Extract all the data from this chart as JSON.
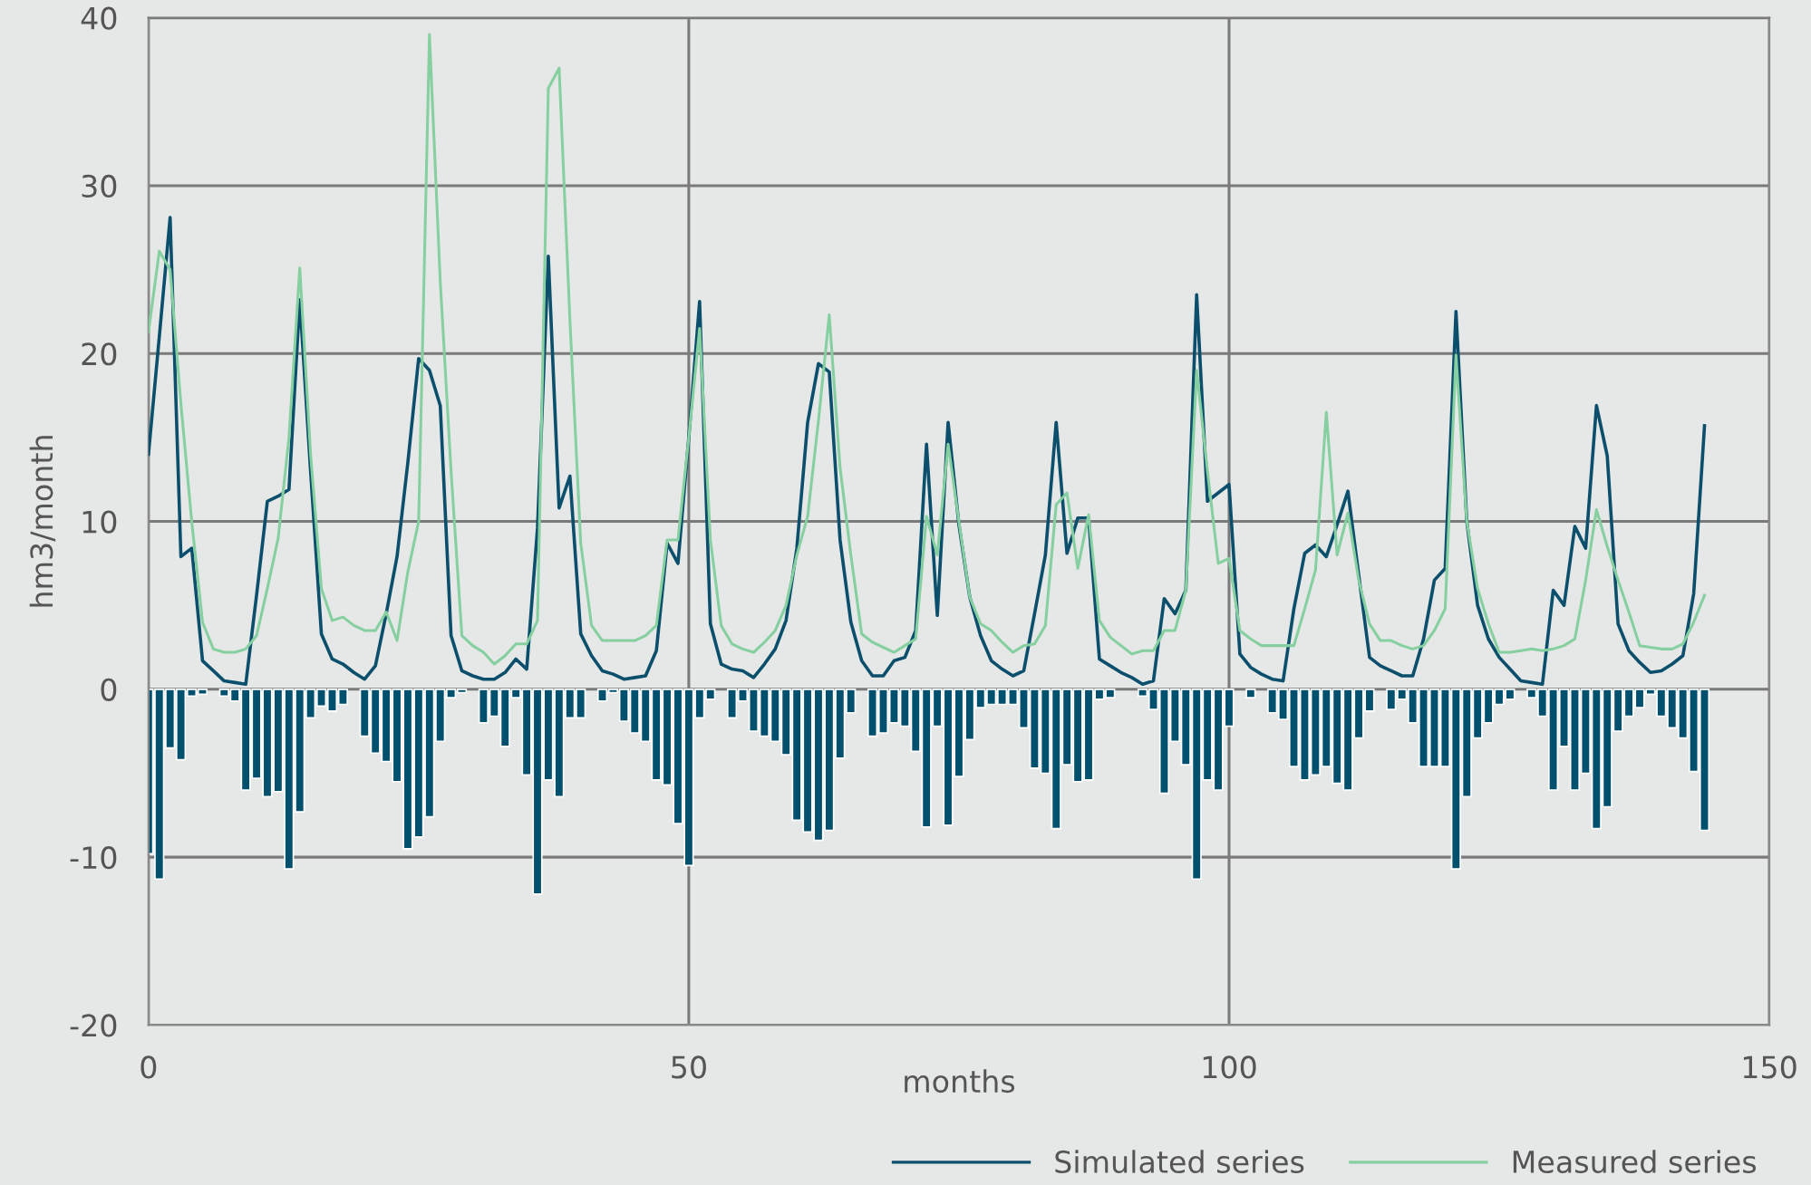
{
  "chart_data": {
    "type": "line",
    "xlabel": "months",
    "ylabel": "hm3/month",
    "x": [
      0,
      1,
      2,
      3,
      4,
      5,
      6,
      7,
      8,
      9,
      10,
      11,
      12,
      13,
      14,
      15,
      16,
      17,
      18,
      19,
      20,
      21,
      22,
      23,
      24,
      25,
      26,
      27,
      28,
      29,
      30,
      31,
      32,
      33,
      34,
      35,
      36,
      37,
      38,
      39,
      40,
      41,
      42,
      43,
      44,
      45,
      46,
      47,
      48,
      49,
      50,
      51,
      52,
      53,
      54,
      55,
      56,
      57,
      58,
      59,
      60,
      61,
      62,
      63,
      64,
      65,
      66,
      67,
      68,
      69,
      70,
      71,
      72,
      73,
      74,
      75,
      76,
      77,
      78,
      79,
      80,
      81,
      82,
      83,
      84,
      85,
      86,
      87,
      88,
      89,
      90,
      91,
      92,
      93,
      94,
      95,
      96,
      97,
      98,
      99,
      100,
      101,
      102,
      103,
      104,
      105,
      106,
      107,
      108,
      109,
      110,
      111,
      112,
      113,
      114,
      115,
      116,
      117,
      118,
      119,
      120,
      121,
      122,
      123,
      124,
      125,
      126,
      127,
      128,
      129,
      130,
      131,
      132,
      133,
      134,
      135,
      136,
      137,
      138,
      139,
      140,
      141,
      142,
      143,
      144
    ],
    "series": [
      {
        "type": "bar",
        "color": "#00506e",
        "values": [
          -9.8,
          -11.3,
          -3.5,
          -4.2,
          -0.4,
          -0.3,
          null,
          -0.4,
          -0.7,
          -6.0,
          -5.3,
          -6.4,
          -6.1,
          -10.7,
          -7.3,
          -1.7,
          -1.0,
          -1.3,
          -0.9,
          null,
          -2.8,
          -3.8,
          -4.3,
          -5.5,
          -9.5,
          -8.8,
          -7.6,
          -3.1,
          -0.5,
          -0.2,
          null,
          -2.0,
          -1.6,
          -3.4,
          -0.5,
          -5.1,
          -12.2,
          -5.4,
          -6.4,
          -1.7,
          -1.7,
          null,
          -0.7,
          -0.2,
          -1.9,
          -2.6,
          -3.1,
          -5.4,
          -5.7,
          -8.0,
          -10.5,
          -1.7,
          -0.6,
          null,
          -1.7,
          -0.7,
          -2.5,
          -2.8,
          -3.1,
          -3.9,
          -7.8,
          -8.5,
          -9.0,
          -8.4,
          -4.1,
          -1.4,
          null,
          -2.8,
          -2.6,
          -2.0,
          -2.2,
          -3.7,
          -8.2,
          -2.2,
          -8.1,
          -5.2,
          -3.0,
          -1.1,
          -0.9,
          -0.9,
          -0.9,
          -2.3,
          -4.7,
          -5.0,
          -8.3,
          -4.5,
          -5.5,
          -5.4,
          -0.6,
          -0.5,
          null,
          null,
          -0.4,
          -1.2,
          -6.2,
          -3.1,
          -4.5,
          -11.3,
          -5.4,
          -6.0,
          -2.2,
          null,
          -0.5,
          null,
          -1.4,
          -1.8,
          -4.6,
          -5.4,
          -5.1,
          -4.6,
          -5.6,
          -6.0,
          -2.9,
          -1.3,
          null,
          -1.2,
          -0.6,
          -2.0,
          -4.6,
          -4.6,
          -4.6,
          -10.7,
          -6.4,
          -2.9,
          -2.0,
          -0.9,
          -0.6,
          null,
          -0.5,
          -1.6,
          -6.0,
          -3.4,
          -6.0,
          -5.0,
          -8.3,
          -7.0,
          -2.5,
          -1.6,
          -1.1,
          -0.3,
          -1.6,
          -2.3,
          -2.9,
          -4.9,
          -8.4
        ]
      },
      {
        "name": "Simulated series",
        "color": "#0b4f6c",
        "values": [
          14,
          21,
          28.1,
          7.9,
          8.4,
          1.7,
          1.1,
          0.5,
          0.4,
          0.3,
          5.6,
          11.2,
          11.5,
          11.9,
          23.2,
          13,
          3.3,
          1.8,
          1.5,
          1.0,
          0.6,
          1.4,
          4.5,
          7.9,
          13.5,
          19.7,
          19.0,
          16.9,
          3.2,
          1.1,
          0.8,
          0.6,
          0.6,
          1.0,
          1.8,
          1.2,
          9.6,
          25.8,
          10.8,
          12.7,
          3.3,
          2.0,
          1.1,
          0.9,
          0.6,
          0.7,
          0.8,
          2.3,
          8.7,
          7.5,
          15,
          23.1,
          3.9,
          1.5,
          1.2,
          1.1,
          0.7,
          1.5,
          2.4,
          4.1,
          8.4,
          15.9,
          19.4,
          18.9,
          8.9,
          4,
          1.7,
          0.8,
          0.8,
          1.7,
          1.9,
          3.5,
          14.6,
          4.4,
          15.9,
          9.8,
          5.5,
          3.2,
          1.7,
          1.2,
          0.8,
          1.1,
          4.5,
          8,
          15.9,
          8.1,
          10.2,
          10.2,
          1.8,
          1.4,
          1.0,
          0.7,
          0.3,
          0.5,
          5.4,
          4.5,
          5.9,
          23.5,
          11.2,
          11.7,
          12.2,
          2.1,
          1.3,
          0.9,
          0.6,
          0.5,
          4.8,
          8.1,
          8.6,
          7.9,
          9.8,
          11.8,
          6.8,
          1.9,
          1.4,
          1.1,
          0.8,
          0.8,
          3.0,
          6.5,
          7.2,
          22.5,
          10,
          5.0,
          3,
          1.9,
          1.2,
          0.5,
          0.4,
          0.3,
          5.9,
          5.0,
          9.7,
          8.4,
          16.9,
          13.9,
          3.9,
          2.3,
          1.6,
          1.0,
          1.1,
          1.5,
          2.0,
          5.7,
          15.7
        ]
      },
      {
        "name": "Measured series",
        "color": "#86cfa0",
        "values": [
          21.3,
          26.1,
          25,
          17,
          10,
          4,
          2.4,
          2.2,
          2.2,
          2.4,
          3.2,
          6,
          9,
          15,
          25.1,
          14,
          6,
          4.1,
          4.3,
          3.8,
          3.5,
          3.5,
          4.6,
          2.9,
          7,
          10,
          39,
          24.3,
          13,
          3.2,
          2.6,
          2.2,
          1.5,
          2.0,
          2.7,
          2.7,
          4.1,
          35.8,
          37,
          22,
          8.7,
          3.8,
          2.9,
          2.9,
          2.9,
          2.9,
          3.2,
          3.8,
          8.9,
          8.9,
          15,
          21.5,
          8.9,
          3.8,
          2.7,
          2.4,
          2.2,
          2.8,
          3.5,
          5,
          8,
          10.3,
          16,
          22.3,
          13.2,
          8,
          3.3,
          2.8,
          2.5,
          2.2,
          2.6,
          3.0,
          10.3,
          8,
          14.6,
          10,
          5.5,
          3.9,
          3.5,
          2.8,
          2.2,
          2.6,
          2.7,
          3.8,
          11,
          11.7,
          7.2,
          10.4,
          4.1,
          3.1,
          2.6,
          2.1,
          2.3,
          2.3,
          3.5,
          3.5,
          5.9,
          19,
          13,
          7.5,
          7.8,
          3.5,
          3.0,
          2.6,
          2.6,
          2.6,
          2.6,
          4.8,
          7.1,
          16.5,
          8,
          10.5,
          6.5,
          3.9,
          2.9,
          2.9,
          2.6,
          2.4,
          2.6,
          3.5,
          4.8,
          19.9,
          10,
          6,
          3.9,
          2.2,
          2.2,
          2.3,
          2.4,
          2.3,
          2.4,
          2.6,
          3.0,
          6.5,
          10.7,
          8.5,
          6.5,
          4.6,
          2.6,
          2.5,
          2.4,
          2.4,
          2.7,
          4,
          5.6
        ]
      }
    ],
    "xlim": [
      0,
      150
    ],
    "xticks": [
      0,
      50,
      100,
      150
    ],
    "ylim": [
      -20,
      40
    ],
    "yticks": [
      -20,
      -10,
      0,
      10,
      20,
      30,
      40
    ],
    "grid": true,
    "legend": "bottom right",
    "marker": "none",
    "line_style": "solid"
  }
}
